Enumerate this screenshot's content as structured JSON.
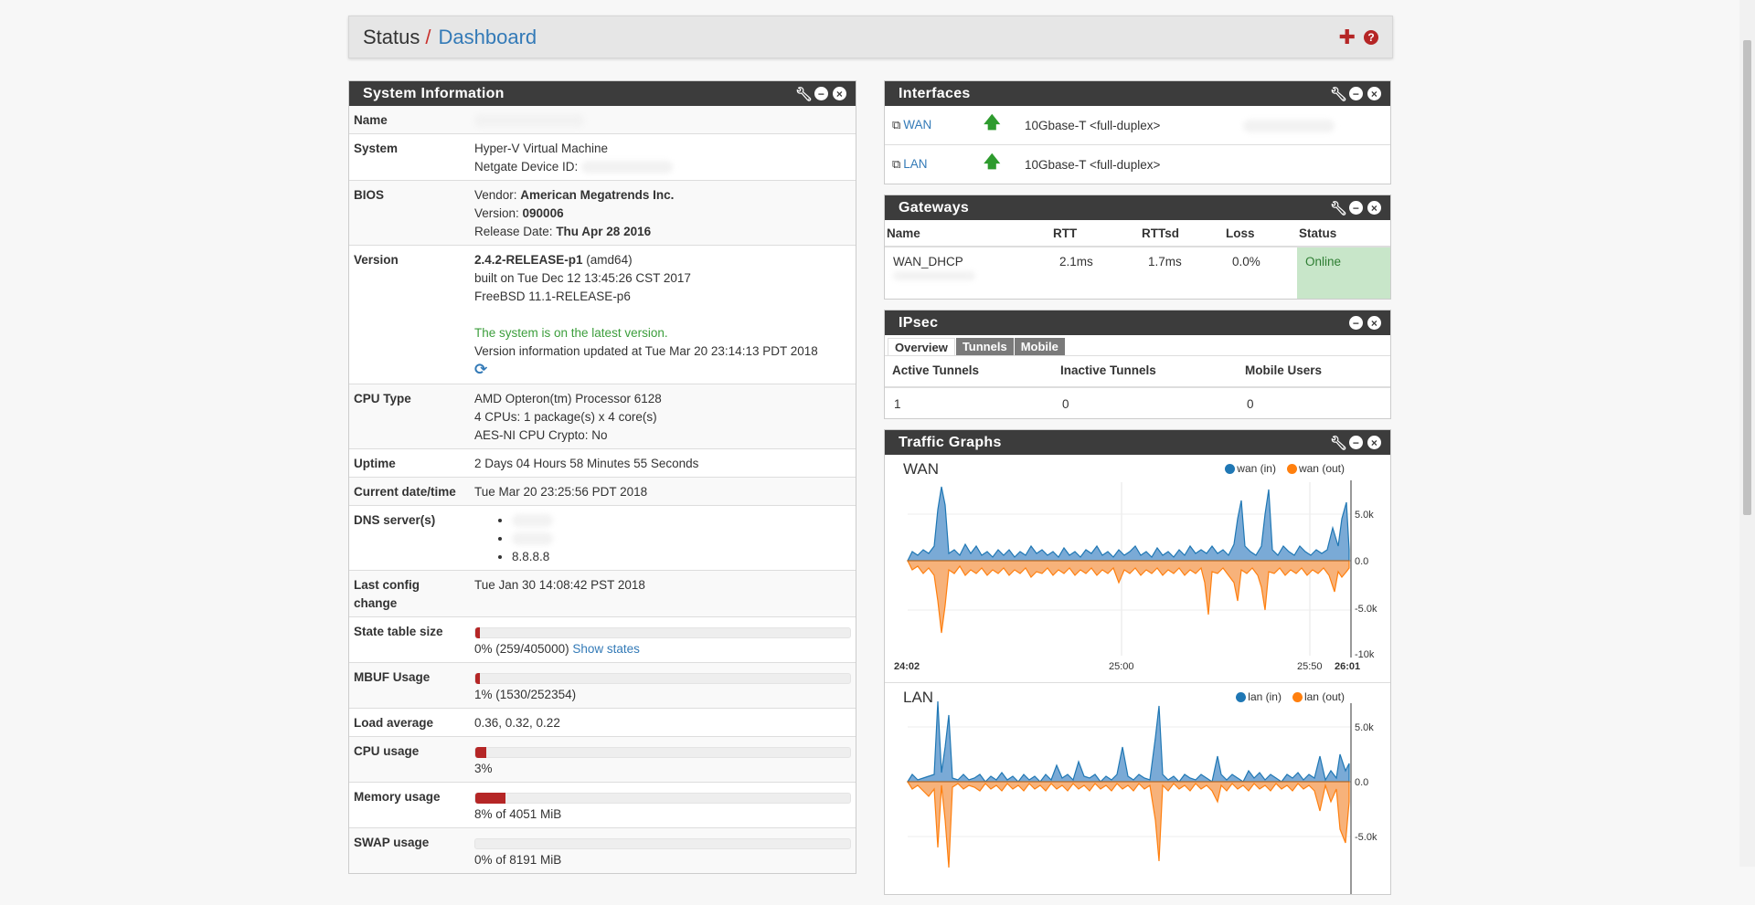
{
  "breadcrumb": {
    "status": "Status",
    "separator": "/",
    "dashboard": "Dashboard"
  },
  "system_info": {
    "title": "System Information",
    "rows": {
      "name": {
        "label": "Name"
      },
      "system": {
        "label": "System",
        "line1": "Hyper-V Virtual Machine",
        "line2": "Netgate Device ID:"
      },
      "bios": {
        "label": "BIOS",
        "vendor_prefix": "Vendor: ",
        "vendor": "American Megatrends Inc.",
        "version_prefix": "Version: ",
        "version": "090006",
        "date_prefix": "Release Date: ",
        "date": "Thu Apr 28 2016"
      },
      "version": {
        "label": "Version",
        "release": "2.4.2-RELEASE-p1",
        "arch": " (amd64)",
        "built": "built on Tue Dec 12 13:45:26 CST 2017",
        "freebsd": "FreeBSD 11.1-RELEASE-p6",
        "latest": "The system is on the latest version.",
        "updated": "Version information updated at Tue Mar 20 23:14:13 PDT 2018"
      },
      "cpu_type": {
        "label": "CPU Type",
        "line1": "AMD Opteron(tm) Processor 6128",
        "line2": "4 CPUs: 1 package(s) x 4 core(s)",
        "line3": "AES-NI CPU Crypto: No"
      },
      "uptime": {
        "label": "Uptime",
        "value": "2 Days 04 Hours 58 Minutes 55 Seconds"
      },
      "datetime": {
        "label": "Current date/time",
        "value": "Tue Mar 20 23:25:56 PDT 2018"
      },
      "dns": {
        "label": "DNS server(s)",
        "servers": [
          "",
          "",
          "8.8.8.8"
        ]
      },
      "last_config": {
        "label": "Last config change",
        "value": "Tue Jan 30 14:08:42 PST 2018"
      },
      "state_table": {
        "label": "State table size",
        "value": "0% (259/405000)",
        "link": "Show states",
        "fraction": 0.0006
      },
      "mbuf": {
        "label": "MBUF Usage",
        "value": "1% (1530/252354)",
        "fraction": 0.01
      },
      "load": {
        "label": "Load average",
        "value": "0.36, 0.32, 0.22"
      },
      "cpu_usage": {
        "label": "CPU usage",
        "value": "3%",
        "fraction": 0.03
      },
      "memory": {
        "label": "Memory usage",
        "value": "8% of 4051 MiB",
        "fraction": 0.08
      },
      "swap": {
        "label": "SWAP usage",
        "value": "0% of 8191 MiB",
        "fraction": 0.0
      }
    }
  },
  "interfaces": {
    "title": "Interfaces",
    "items": [
      {
        "name": "WAN",
        "media": "10Gbase-T <full-duplex>"
      },
      {
        "name": "LAN",
        "media": "10Gbase-T <full-duplex>"
      }
    ]
  },
  "gateways": {
    "title": "Gateways",
    "headers": [
      "Name",
      "RTT",
      "RTTsd",
      "Loss",
      "Status"
    ],
    "rows": [
      {
        "name": "WAN_DHCP",
        "rtt": "2.1ms",
        "rttsd": "1.7ms",
        "loss": "0.0%",
        "status": "Online"
      }
    ]
  },
  "ipsec": {
    "title": "IPsec",
    "tabs": [
      "Overview",
      "Tunnels",
      "Mobile"
    ],
    "headers": [
      "Active Tunnels",
      "Inactive Tunnels",
      "Mobile Users"
    ],
    "values": [
      "1",
      "0",
      "0"
    ]
  },
  "traffic": {
    "title": "Traffic Graphs",
    "wan": {
      "title": "WAN",
      "legend_in": "wan (in)",
      "legend_out": "wan (out)",
      "y_ticks": [
        "5.0k",
        "0.0",
        "-5.0k",
        "-10k"
      ],
      "x_ticks": [
        "24:02",
        "25:00",
        "25:50",
        "26:01"
      ]
    },
    "lan": {
      "title": "LAN",
      "legend_in": "lan (in)",
      "legend_out": "lan (out)",
      "y_ticks": [
        "5.0k",
        "0.0",
        "-5.0k"
      ]
    }
  },
  "colors": {
    "in": "#1f77b4",
    "out": "#ff7f0e",
    "accent": "#b52626",
    "link": "#337ab7",
    "online": "#c8e6c9"
  },
  "icons": {
    "add": "plus-icon",
    "help": "help-icon",
    "settings": "wrench-icon",
    "minimize": "minus-icon",
    "close": "close-icon"
  }
}
